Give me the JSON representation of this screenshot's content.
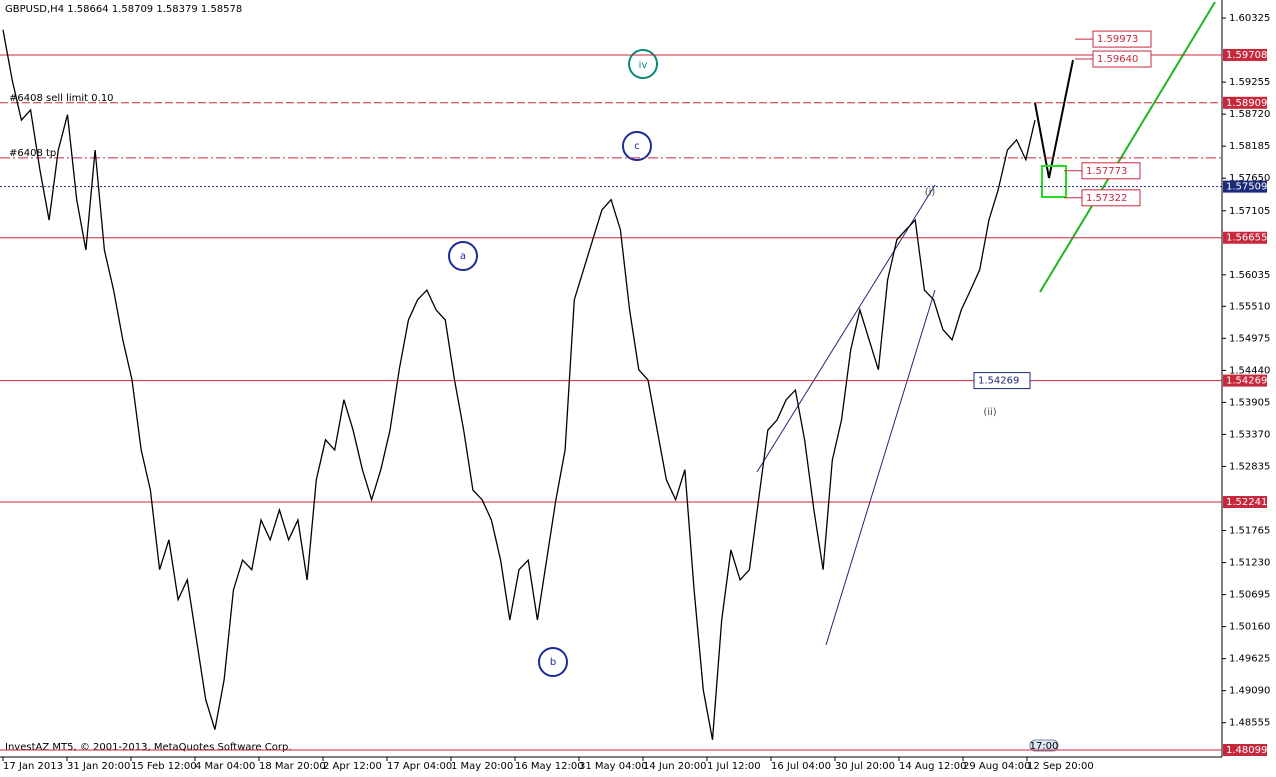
{
  "chart_data": {
    "type": "line",
    "symbol": "GBPUSD,H4",
    "ohlc": [
      1.58664,
      1.58709,
      1.58379,
      1.58578
    ],
    "copyright": "InvestAZ MT5, © 2001-2013, MetaQuotes Software Corp.",
    "time_tag": "17:00",
    "ylim": [
      1.47982,
      1.60626
    ],
    "yticks": [
      1.60325,
      1.59255,
      {
        "value": 1.5872,
        "label": "1.58720"
      },
      1.58185,
      {
        "value": 1.5765,
        "label": "1.57650"
      },
      1.57105,
      1.56035,
      {
        "value": 1.5551,
        "label": "1.55510"
      },
      1.54975,
      {
        "value": 1.5444,
        "label": "1.54440"
      },
      1.53905,
      {
        "value": 1.5337,
        "label": "1.53370"
      },
      1.52835,
      1.51765,
      {
        "value": 1.5123,
        "label": "1.51230"
      },
      1.50695,
      {
        "value": 1.5016,
        "label": "1.50160"
      },
      1.49625,
      {
        "value": 1.4909,
        "label": "1.49090"
      },
      1.48555
    ],
    "x_labels": [
      "17 Jan 2013",
      "31 Jan 20:00",
      "15 Feb 12:00",
      "4 Mar 04:00",
      "18 Mar 20:00",
      "2 Apr 12:00",
      "17 Apr 04:00",
      "1 May 20:00",
      "16 May 12:00",
      "31 May 04:00",
      "14 Jun 20:00",
      "1 Jul 12:00",
      "16 Jul 04:00",
      "30 Jul 20:00",
      "14 Aug 12:00",
      "29 Aug 04:00",
      "12 Sep 20:00"
    ],
    "series": [
      {
        "color": "#000000",
        "values": [
          1.6013,
          1.5929,
          1.5862,
          1.5879,
          1.5779,
          1.5695,
          1.5812,
          1.5871,
          1.5729,
          1.5645,
          1.5812,
          1.5645,
          1.5578,
          1.5495,
          1.5428,
          1.5311,
          1.5244,
          1.5111,
          1.5161,
          1.5061,
          1.5094,
          1.4994,
          1.4894,
          1.4844,
          1.4927,
          1.5077,
          1.5127,
          1.5111,
          1.5194,
          1.5161,
          1.5211,
          1.5161,
          1.5194,
          1.5094,
          1.5261,
          1.5328,
          1.5311,
          1.5395,
          1.5344,
          1.5278,
          1.5228,
          1.5278,
          1.5344,
          1.5445,
          1.5528,
          1.5562,
          1.5578,
          1.5545,
          1.5528,
          1.5428,
          1.5344,
          1.5244,
          1.5228,
          1.5194,
          1.5127,
          1.5027,
          1.5111,
          1.5127,
          1.5027,
          1.5127,
          1.5228,
          1.5311,
          1.5562,
          1.5612,
          1.5662,
          1.5712,
          1.5729,
          1.5679,
          1.5545,
          1.5445,
          1.5428,
          1.5344,
          1.5261,
          1.5228,
          1.5278,
          1.5077,
          1.491,
          1.4827,
          1.5027,
          1.5144,
          1.5094,
          1.5111,
          1.5228,
          1.5344,
          1.5361,
          1.5395,
          1.5411,
          1.5328,
          1.5211,
          1.5111,
          1.5294,
          1.5361,
          1.5478,
          1.5545,
          1.5495,
          1.5445,
          1.5595,
          1.5662,
          1.5679,
          1.5695,
          1.5578,
          1.5562,
          1.5512,
          1.5495,
          1.5545,
          1.5578,
          1.5612,
          1.5695,
          1.5745,
          1.5812,
          1.5829,
          1.5796,
          1.5862
        ]
      }
    ],
    "levels": [
      {
        "value": 1.59708,
        "style": "solid",
        "color": "#c8283c"
      },
      {
        "value": 1.58909,
        "style": "dashed",
        "color": "#c8283c"
      },
      {
        "value": 1.57509,
        "style": "dotted",
        "color": "#1c2a7a"
      },
      {
        "value": 1.56655,
        "style": "solid",
        "color": "#c8283c"
      },
      {
        "value": 1.54269,
        "style": "solid",
        "color": "#c8283c"
      },
      {
        "value": 1.52241,
        "style": "solid",
        "color": "#c8283c"
      },
      {
        "value": 1.48099,
        "style": "solid",
        "color": "#c8283c"
      }
    ],
    "tp_level": 1.5799,
    "orders": [
      "#6408 sell limit 0.10",
      "#6408 tp"
    ],
    "waves": [
      "iv",
      "c",
      "a",
      "b",
      "(i)",
      "(ii)"
    ],
    "targets": [
      1.59973,
      {
        "value": 1.5964,
        "label": "1.59640"
      },
      1.57773,
      1.57322
    ],
    "low_label": 1.54269
  }
}
